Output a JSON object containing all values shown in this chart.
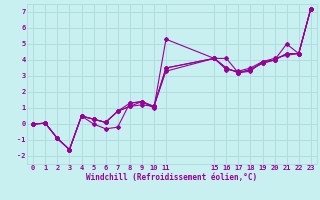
{
  "xlabel": "Windchill (Refroidissement éolien,°C)",
  "bg_color": "#c8f0f0",
  "grid_color": "#b0dede",
  "line_color": "#990099",
  "xlim": [
    -0.5,
    23.5
  ],
  "ylim": [
    -2.5,
    7.5
  ],
  "xtick_positions": [
    0,
    1,
    2,
    3,
    4,
    5,
    6,
    7,
    8,
    9,
    10,
    11,
    15,
    16,
    17,
    18,
    19,
    20,
    21,
    22,
    23
  ],
  "ytick_positions": [
    -2,
    -1,
    0,
    1,
    2,
    3,
    4,
    5,
    6,
    7
  ],
  "series_x": [
    0,
    1,
    2,
    3,
    4,
    5,
    6,
    7,
    8,
    9,
    10,
    11,
    15,
    16,
    17,
    18,
    19,
    20,
    21,
    22,
    23
  ],
  "series_y": [
    [
      0.0,
      0.05,
      -0.9,
      -1.6,
      0.5,
      0.0,
      -0.3,
      -0.2,
      1.3,
      1.4,
      1.0,
      5.3,
      4.1,
      4.1,
      3.2,
      3.3,
      3.9,
      4.1,
      4.3,
      4.4,
      7.2
    ],
    [
      0.0,
      0.05,
      -0.9,
      -1.6,
      0.5,
      0.3,
      0.1,
      0.8,
      1.3,
      1.4,
      1.1,
      3.5,
      4.1,
      3.4,
      3.3,
      3.5,
      3.9,
      4.0,
      5.0,
      4.4,
      7.2
    ],
    [
      0.0,
      0.05,
      -0.9,
      -1.6,
      0.5,
      0.3,
      0.1,
      0.8,
      1.1,
      1.4,
      1.1,
      3.5,
      4.1,
      3.5,
      3.2,
      3.4,
      3.8,
      4.0,
      4.4,
      4.4,
      7.2
    ],
    [
      0.0,
      0.05,
      -0.9,
      -1.6,
      0.5,
      0.3,
      0.1,
      0.8,
      1.1,
      1.2,
      1.1,
      3.3,
      4.1,
      3.5,
      3.2,
      3.4,
      3.8,
      4.0,
      4.4,
      4.4,
      7.2
    ]
  ]
}
